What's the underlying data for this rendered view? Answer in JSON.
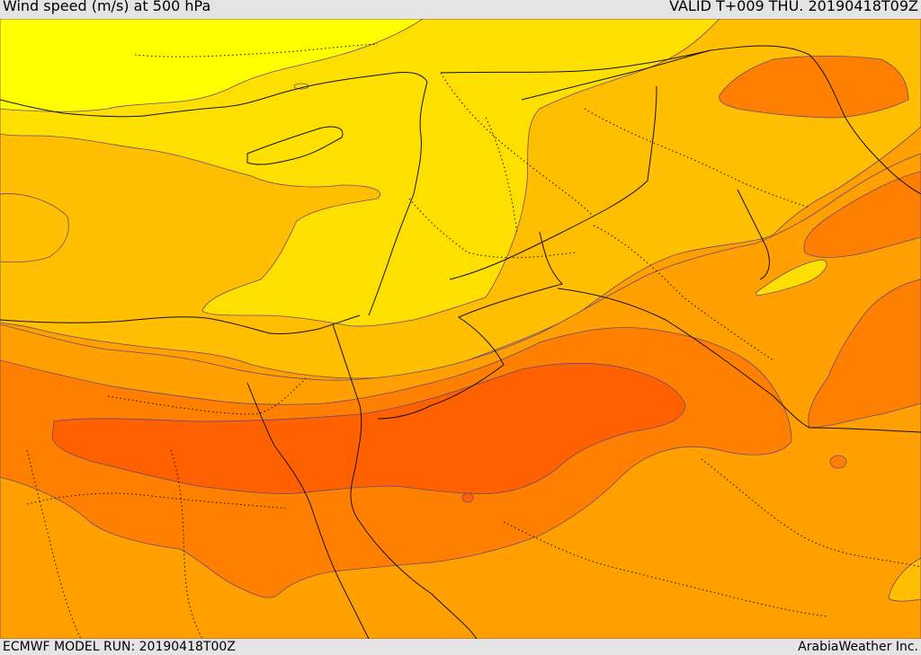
{
  "header": {
    "title": "Wind speed (m/s) at 500 hPa",
    "valid": "VALID T+009 THU. 20190418T09Z"
  },
  "footer": {
    "model_run": "ECMWF MODEL RUN: 20190418T00Z",
    "credit": "ArabiaWeather Inc."
  },
  "colors": {
    "band_1": "#ffff00",
    "band_2": "#ffdf00",
    "band_3": "#ffbf00",
    "band_4": "#ffa000",
    "band_5": "#ff8000",
    "band_6": "#ff6000"
  },
  "map": {
    "variable": "wind speed",
    "level": "500 hPa",
    "units": "m/s"
  }
}
